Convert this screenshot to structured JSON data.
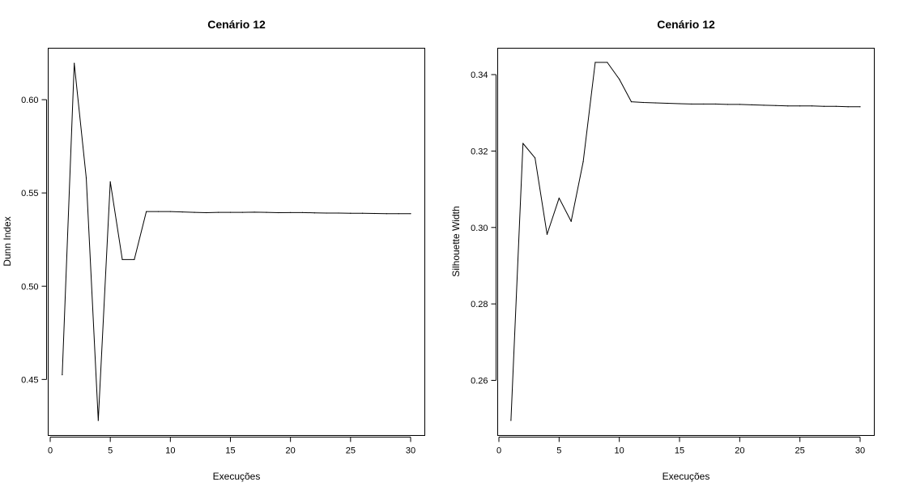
{
  "chart_data": [
    {
      "type": "line",
      "title": "Cenário 12",
      "xlabel": "Execuções",
      "ylabel": "Dunn Index",
      "xlim": [
        0,
        30
      ],
      "ylim": [
        0.428,
        0.62
      ],
      "xticks": [
        0,
        5,
        10,
        15,
        20,
        25,
        30
      ],
      "yticks": [
        0.45,
        0.5,
        0.55,
        0.6
      ],
      "ytick_labels": [
        "0.45",
        "0.50",
        "0.55",
        "0.60"
      ],
      "grid": false,
      "line_color": "#000000",
      "x": [
        1,
        2,
        3,
        4,
        5,
        6,
        7,
        8,
        9,
        10,
        11,
        12,
        13,
        14,
        15,
        16,
        17,
        18,
        19,
        20,
        21,
        22,
        23,
        24,
        25,
        26,
        27,
        28,
        29,
        30
      ],
      "series": [
        {
          "values": [
            0.4525,
            0.6195,
            0.558,
            0.428,
            0.556,
            0.5143,
            0.5143,
            0.54,
            0.54,
            0.54,
            0.5398,
            0.5396,
            0.5394,
            0.5396,
            0.5396,
            0.5396,
            0.5397,
            0.5396,
            0.5394,
            0.5395,
            0.5395,
            0.5393,
            0.5392,
            0.5392,
            0.5391,
            0.5391,
            0.539,
            0.5389,
            0.5389,
            0.5389
          ]
        }
      ]
    },
    {
      "type": "line",
      "title": "Cenário 12",
      "xlabel": "Execuções",
      "ylabel": "Silhouette Width",
      "xlim": [
        0,
        30
      ],
      "ylim": [
        0.2495,
        0.3432
      ],
      "xticks": [
        0,
        5,
        10,
        15,
        20,
        25,
        30
      ],
      "yticks": [
        0.26,
        0.28,
        0.3,
        0.32,
        0.34
      ],
      "ytick_labels": [
        "0.26",
        "0.28",
        "0.30",
        "0.32",
        "0.34"
      ],
      "grid": false,
      "line_color": "#000000",
      "x": [
        1,
        2,
        3,
        4,
        5,
        6,
        7,
        8,
        9,
        10,
        11,
        12,
        13,
        14,
        15,
        16,
        17,
        18,
        19,
        20,
        21,
        22,
        23,
        24,
        25,
        26,
        27,
        28,
        29,
        30
      ],
      "series": [
        {
          "values": [
            0.2495,
            0.322,
            0.3182,
            0.2982,
            0.3077,
            0.3016,
            0.3172,
            0.3432,
            0.3432,
            0.3388,
            0.3329,
            0.3327,
            0.3326,
            0.3325,
            0.3324,
            0.3323,
            0.3323,
            0.3323,
            0.3322,
            0.3322,
            0.3321,
            0.332,
            0.3319,
            0.3318,
            0.3318,
            0.3318,
            0.3317,
            0.3317,
            0.3316,
            0.3316
          ]
        }
      ]
    }
  ]
}
